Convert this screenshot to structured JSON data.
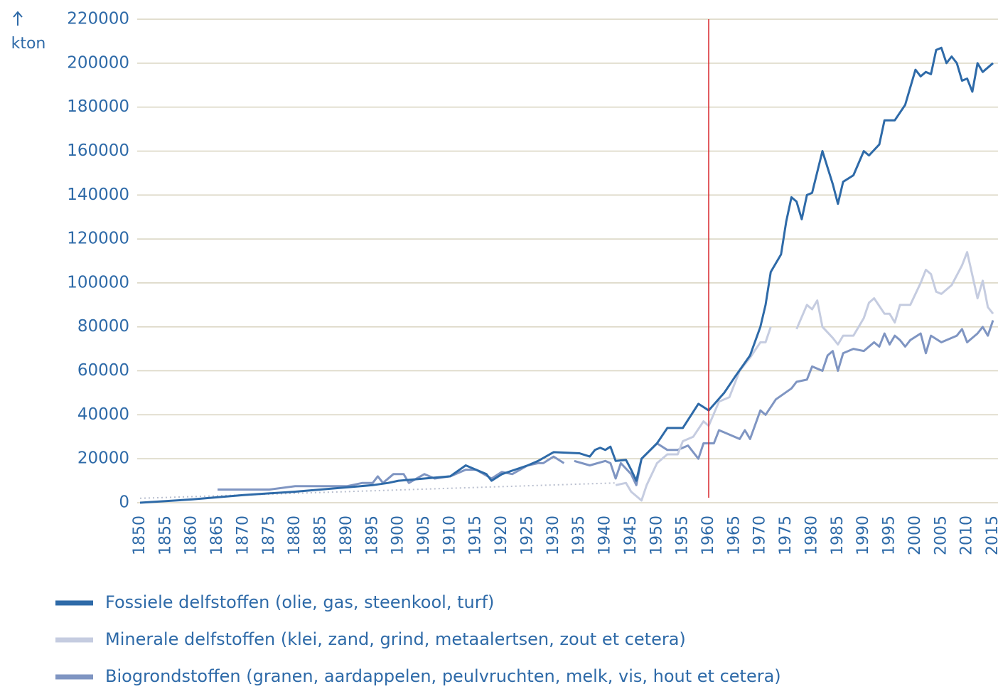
{
  "chart_data": {
    "type": "line",
    "y_label": "kton",
    "xlim": [
      1850,
      2015
    ],
    "xticks": [
      1850,
      1855,
      1860,
      1865,
      1870,
      1875,
      1880,
      1885,
      1890,
      1895,
      1900,
      1905,
      1910,
      1915,
      1920,
      1925,
      1930,
      1935,
      1940,
      1945,
      1950,
      1955,
      1960,
      1965,
      1970,
      1975,
      1980,
      1985,
      1990,
      1995,
      2000,
      2005,
      2010,
      2015
    ],
    "ylim": [
      0,
      220000
    ],
    "yticks": [
      0,
      20000,
      40000,
      60000,
      80000,
      100000,
      120000,
      140000,
      160000,
      180000,
      200000,
      220000
    ],
    "grid": true,
    "grid_color": "#d8d3bf",
    "text_color": "#2e6aa8",
    "vline": {
      "x": 1960,
      "color": "#d9262b"
    },
    "series": [
      {
        "name": "Fossiele delfstoffen (olie, gas, steenkool, turf)",
        "color": "#2e6aa8",
        "x": [
          1850,
          1860,
          1870,
          1880,
          1890,
          1895,
          1898,
          1900,
          1905,
          1910,
          1913,
          1915,
          1917,
          1918,
          1920,
          1925,
          1927,
          1930,
          1935,
          1937,
          1938,
          1939,
          1940,
          1941,
          1942,
          1944,
          1945,
          1946,
          1947,
          1950,
          1952,
          1955,
          1958,
          1960,
          1963,
          1965,
          1968,
          1970,
          1971,
          1972,
          1974,
          1975,
          1976,
          1977,
          1978,
          1979,
          1980,
          1982,
          1984,
          1985,
          1986,
          1988,
          1990,
          1991,
          1993,
          1994,
          1996,
          1998,
          2000,
          2001,
          2002,
          2003,
          2004,
          2005,
          2006,
          2007,
          2008,
          2009,
          2010,
          2011,
          2012,
          2013,
          2015
        ],
        "values": [
          0,
          1500,
          3500,
          5000,
          7000,
          8000,
          9000,
          10000,
          11000,
          12000,
          17000,
          15000,
          13000,
          10000,
          13000,
          17000,
          19000,
          23000,
          22500,
          21000,
          24000,
          25000,
          24000,
          25500,
          19000,
          19500,
          15000,
          10000,
          20000,
          27000,
          34000,
          34000,
          45000,
          42000,
          50000,
          57000,
          67000,
          80000,
          90000,
          105000,
          113000,
          128000,
          139000,
          137000,
          129000,
          140000,
          141000,
          160000,
          145000,
          136000,
          146000,
          149000,
          160000,
          158000,
          163000,
          174000,
          174000,
          181000,
          197000,
          194000,
          196000,
          195000,
          206000,
          207000,
          200000,
          203000,
          200000,
          192000,
          193000,
          187000,
          200000,
          196000,
          200000
        ]
      },
      {
        "name": "Minerale delfstoffen (klei, zand, grind, metaalertsen, zout et cetera)",
        "color": "#c5cce0",
        "x": [
          1942,
          1944,
          1945,
          1947,
          1948,
          1950,
          1952,
          1954,
          1955,
          1957,
          1959,
          1960,
          1962,
          1964,
          1966,
          1968,
          1970,
          1971,
          1972,
          1974,
          1977,
          1979,
          1980,
          1981,
          1982,
          1984,
          1985,
          1986,
          1988,
          1990,
          1991,
          1992,
          1994,
          1995,
          1996,
          1997,
          1999,
          2001,
          2002,
          2003,
          2004,
          2005,
          2007,
          2009,
          2010,
          2012,
          2013,
          2014,
          2015
        ],
        "values": [
          8000,
          9000,
          5000,
          1000,
          8000,
          18000,
          22000,
          22000,
          28000,
          30000,
          37000,
          35000,
          46000,
          48000,
          60000,
          66000,
          73000,
          73000,
          80000,
          null,
          79000,
          90000,
          88000,
          92000,
          80000,
          75000,
          72000,
          76000,
          76000,
          84000,
          91000,
          93000,
          86000,
          86000,
          82000,
          90000,
          90000,
          100000,
          106000,
          104000,
          96000,
          95000,
          99000,
          108000,
          114000,
          93000,
          101000,
          89000,
          86000
        ]
      },
      {
        "name": "Biogrondstoffen (granen, aardappelen, peulvruchten, melk, vis, hout et cetera)",
        "color": "#7f95c2",
        "x": [
          1865,
          1875,
          1880,
          1890,
          1893,
          1895,
          1896,
          1897,
          1899,
          1901,
          1902,
          1905,
          1907,
          1910,
          1913,
          1915,
          1918,
          1920,
          1922,
          1925,
          1927,
          1928,
          1930,
          1932,
          1933,
          1934,
          1937,
          1940,
          1941,
          1942,
          1943,
          1945,
          1946,
          1947,
          1950,
          1952,
          1954,
          1956,
          1958,
          1959,
          1961,
          1962,
          1966,
          1967,
          1968,
          1970,
          1971,
          1973,
          1976,
          1977,
          1979,
          1980,
          1982,
          1983,
          1984,
          1985,
          1986,
          1988,
          1990,
          1992,
          1993,
          1994,
          1995,
          1996,
          1997,
          1998,
          1999,
          2001,
          2002,
          2003,
          2005,
          2008,
          2009,
          2010,
          2012,
          2013,
          2014,
          2015
        ],
        "values": [
          6000,
          6000,
          7500,
          7500,
          9000,
          9000,
          12000,
          9000,
          13000,
          13000,
          9000,
          13000,
          11000,
          12000,
          15000,
          15000,
          11000,
          14000,
          13000,
          17000,
          18000,
          18000,
          21000,
          18000,
          null,
          19000,
          17000,
          19000,
          18000,
          11000,
          18000,
          13000,
          8000,
          20000,
          27000,
          24000,
          24000,
          26000,
          20000,
          27000,
          27000,
          33000,
          29000,
          33000,
          29000,
          42000,
          40000,
          47000,
          52000,
          55000,
          56000,
          62000,
          60000,
          67000,
          69000,
          60000,
          68000,
          70000,
          69000,
          73000,
          71000,
          77000,
          72000,
          76000,
          74000,
          71000,
          74000,
          77000,
          68000,
          76000,
          73000,
          76000,
          79000,
          73000,
          77000,
          80000,
          76000,
          83000
        ]
      },
      {
        "color": "#b9bfcf",
        "dashed": true,
        "x": [
          1850,
          1942
        ],
        "values": [
          2000,
          9000
        ]
      }
    ]
  }
}
